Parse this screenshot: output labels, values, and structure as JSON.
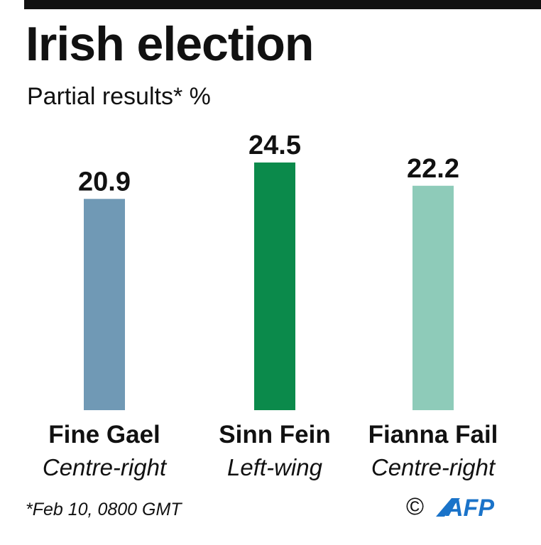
{
  "header": {
    "title": "Irish election",
    "subtitle": "Partial results* %"
  },
  "colors": {
    "fine_gael": "#7099b5",
    "sinn_fein": "#0b8a4b",
    "fianna_fail": "#8ecbb9",
    "text": "#111111",
    "afp_blue": "#1a73c9"
  },
  "chart_data": {
    "type": "bar",
    "title": "Irish election",
    "subtitle": "Partial results* %",
    "categories": [
      "Fine Gael",
      "Sinn Fein",
      "Fianna Fail"
    ],
    "descriptions": [
      "Centre-right",
      "Left-wing",
      "Centre-right"
    ],
    "values": [
      20.9,
      24.5,
      22.2
    ],
    "value_labels": [
      "20.9",
      "24.5",
      "22.2"
    ],
    "colors": [
      "#7099b5",
      "#0b8a4b",
      "#8ecbb9"
    ],
    "ylim": [
      0,
      24.5
    ],
    "grid": false,
    "legend": "none"
  },
  "footer": {
    "note": "*Feb 10, 0800 GMT",
    "copyright": "©",
    "agency": "AFP"
  }
}
